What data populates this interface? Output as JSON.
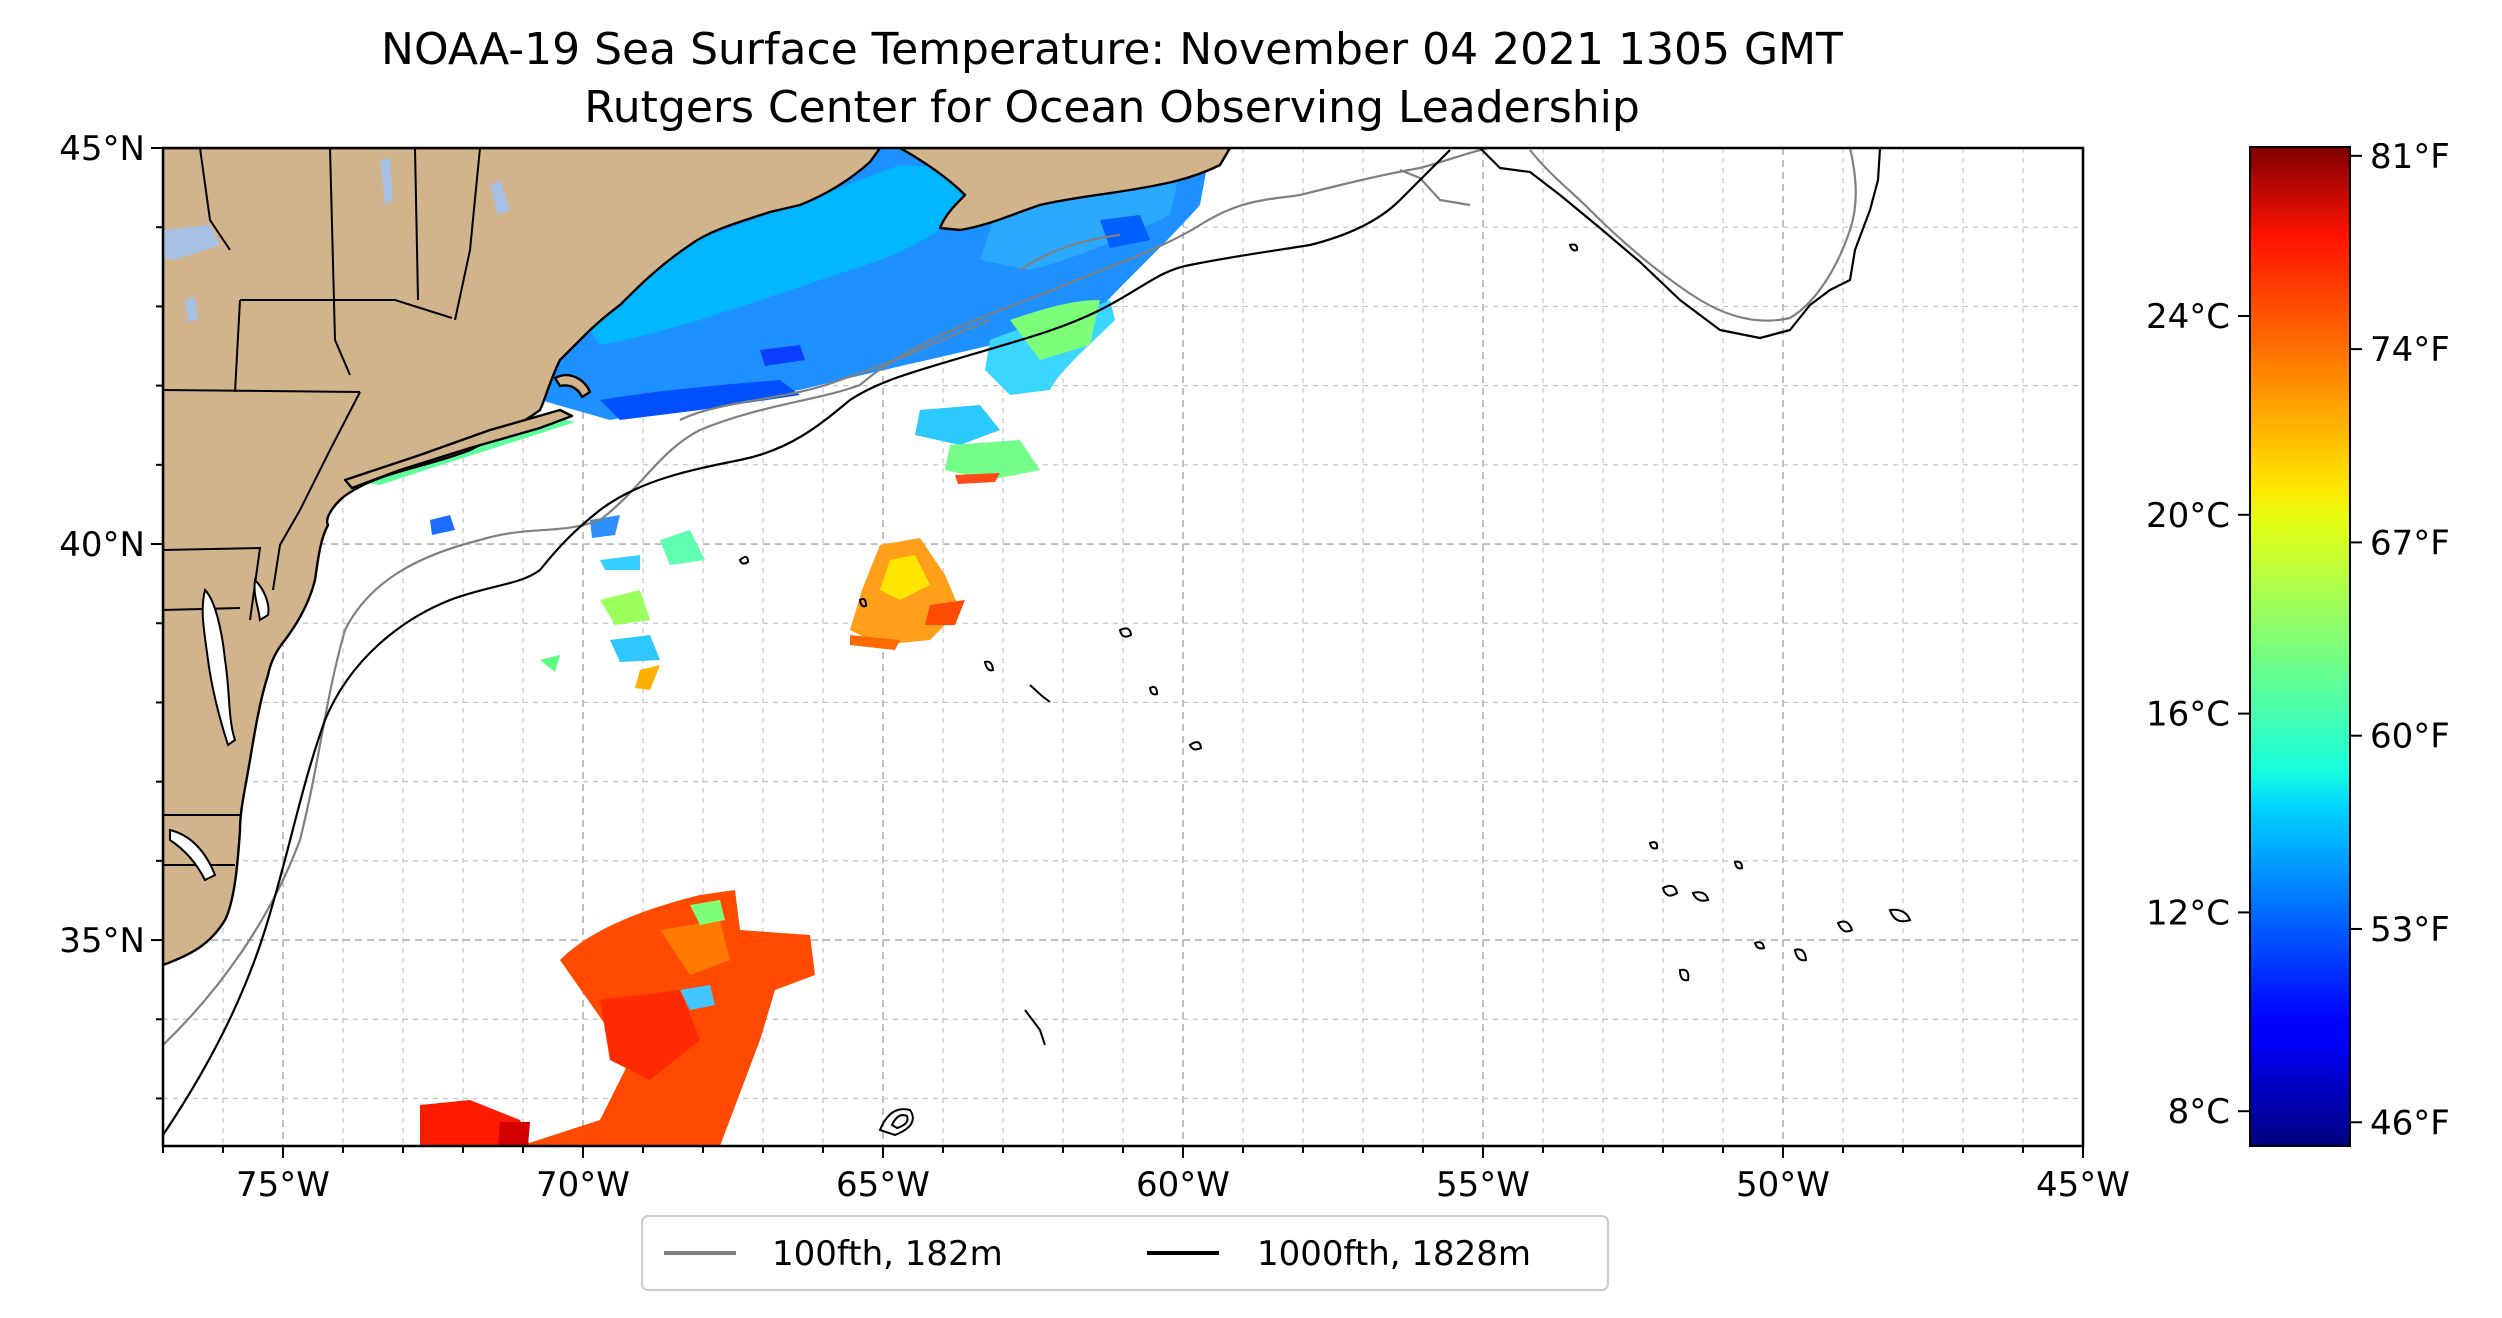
{
  "title": {
    "line1": "NOAA-19 Sea Surface Temperature: November 04 2021 1305 GMT",
    "line2": "Rutgers Center for Ocean Observing Leadership"
  },
  "map": {
    "lon_range": [
      -77,
      -45
    ],
    "lat_range": [
      32.4,
      45
    ],
    "lon_ticks": [
      -75,
      -70,
      -65,
      -60,
      -55,
      -50,
      -45
    ],
    "lon_tick_labels": [
      "75°W",
      "70°W",
      "65°W",
      "60°W",
      "55°W",
      "50°W",
      "45°W"
    ],
    "lat_ticks": [
      35,
      40,
      45
    ],
    "lat_tick_labels": [
      "35°N",
      "40°N",
      "45°N"
    ],
    "grid": true,
    "grid_style": "dashed",
    "land_color": "#d2b48c",
    "lake_color": "#a6c1e3"
  },
  "colorbar": {
    "colormap": "jet",
    "range_celsius": [
      7.3,
      27.4
    ],
    "celsius_ticks": [
      8,
      12,
      16,
      20,
      24
    ],
    "celsius_labels": [
      "8°C",
      "12°C",
      "16°C",
      "20°C",
      "24°C"
    ],
    "fahrenheit_ticks": [
      46,
      53,
      60,
      67,
      74,
      81
    ],
    "fahrenheit_labels": [
      "46°F",
      "53°F",
      "60°F",
      "67°F",
      "74°F",
      "81°F"
    ]
  },
  "legend": {
    "placement": "bottom-center",
    "entries": [
      {
        "label": "100fth, 182m",
        "color": "#808080"
      },
      {
        "label": "1000fth, 1828m",
        "color": "#000000"
      }
    ]
  }
}
